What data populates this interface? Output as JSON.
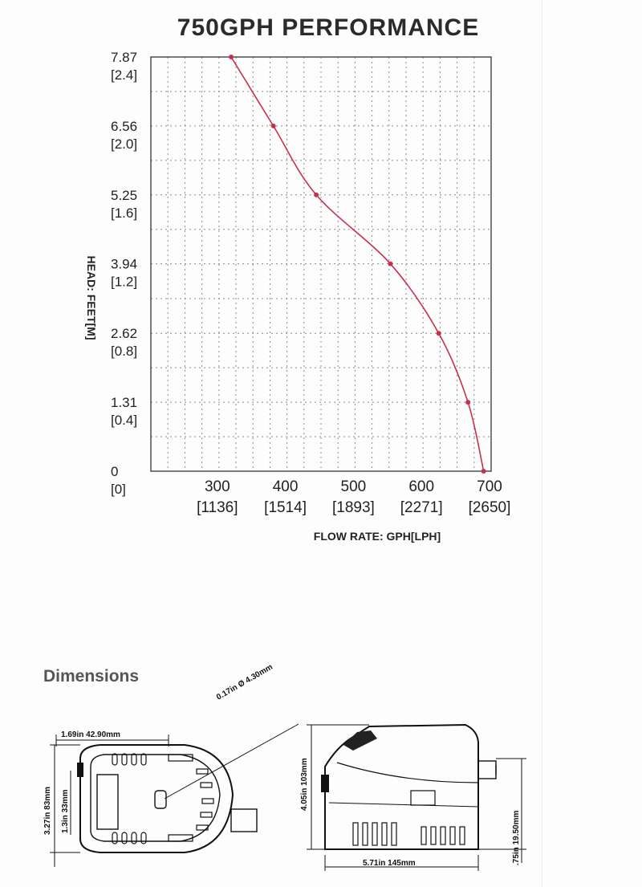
{
  "chart_data": {
    "type": "line",
    "title": "750GPH PERFORMANCE",
    "xlabel": "FLOW RATE: GPH[LPH]",
    "ylabel": "HEAD: FEET[M]",
    "xlim": [
      200,
      700
    ],
    "ylim": [
      0,
      7.87
    ],
    "x_ticks": [
      {
        "value": 300,
        "label": "300",
        "sublabel": "[1136]"
      },
      {
        "value": 400,
        "label": "400",
        "sublabel": "[1514]"
      },
      {
        "value": 500,
        "label": "500",
        "sublabel": "[1893]"
      },
      {
        "value": 600,
        "label": "600",
        "sublabel": "[2271]"
      },
      {
        "value": 700,
        "label": "700",
        "sublabel": "[2650]"
      }
    ],
    "y_ticks": [
      {
        "value": 0,
        "label": "0",
        "sublabel": "[0]"
      },
      {
        "value": 1.31,
        "label": "1.31",
        "sublabel": "[0.4]"
      },
      {
        "value": 2.62,
        "label": "2.62",
        "sublabel": "[0.8]"
      },
      {
        "value": 3.94,
        "label": "3.94",
        "sublabel": "[1.2]"
      },
      {
        "value": 5.25,
        "label": "5.25",
        "sublabel": "[1.6]"
      },
      {
        "value": 6.56,
        "label": "6.56",
        "sublabel": "[2.0]"
      },
      {
        "value": 7.87,
        "label": "7.87",
        "sublabel": "[2.4]"
      }
    ],
    "series": [
      {
        "x": [
          318,
          380,
          443,
          552,
          623,
          666,
          689
        ],
        "y": [
          7.87,
          6.56,
          5.25,
          3.94,
          2.62,
          1.31,
          0
        ]
      }
    ],
    "line_color": "#c8304a",
    "grid": true
  },
  "dimensions": {
    "heading": "Dimensions",
    "labels": {
      "width_top": "1.69in  42.90mm",
      "hole": "0.17in  Ø 4.30mm",
      "height_left": "3.27in 83mm",
      "inner_height": "1.3in 33mm",
      "total_height": "4.05in 103mm",
      "outlet_height": ".75in 19.50mm",
      "length": "5.71in  145mm"
    }
  }
}
